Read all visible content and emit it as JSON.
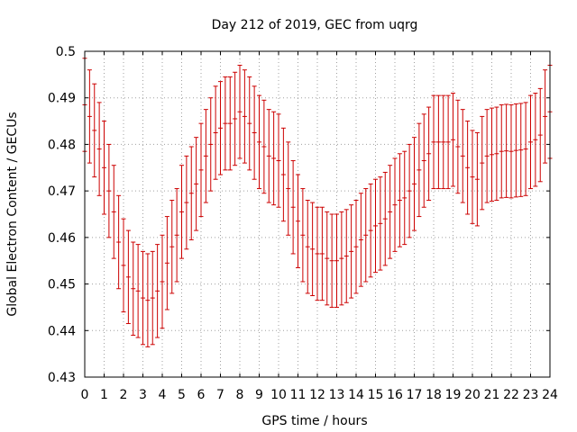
{
  "chart_data": {
    "type": "errorbar",
    "title": "Day 212 of 2019, GEC from uqrg",
    "xlabel": "GPS time / hours",
    "ylabel": "Global Electron Content / GECUs",
    "xlim": [
      0,
      24
    ],
    "ylim": [
      0.43,
      0.5
    ],
    "xticks": [
      "0",
      "1",
      "2",
      "3",
      "4",
      "5",
      "6",
      "7",
      "8",
      "9",
      "10",
      "11",
      "12",
      "13",
      "14",
      "15",
      "16",
      "17",
      "18",
      "19",
      "20",
      "21",
      "22",
      "23",
      "24"
    ],
    "yticks": [
      "0.43",
      "0.44",
      "0.45",
      "0.46",
      "0.47",
      "0.48",
      "0.49",
      "0.5"
    ],
    "grid": true,
    "series": [
      {
        "name": "GEC",
        "color": "#cc0000",
        "error": 0.01,
        "points": [
          [
            0.0,
            0.4885
          ],
          [
            0.25,
            0.486
          ],
          [
            0.5,
            0.483
          ],
          [
            0.75,
            0.479
          ],
          [
            1.0,
            0.475
          ],
          [
            1.25,
            0.47
          ],
          [
            1.5,
            0.4655
          ],
          [
            1.75,
            0.459
          ],
          [
            2.0,
            0.454
          ],
          [
            2.25,
            0.4515
          ],
          [
            2.5,
            0.449
          ],
          [
            2.75,
            0.4485
          ],
          [
            3.0,
            0.447
          ],
          [
            3.25,
            0.4465
          ],
          [
            3.5,
            0.447
          ],
          [
            3.75,
            0.4485
          ],
          [
            4.0,
            0.4505
          ],
          [
            4.25,
            0.4545
          ],
          [
            4.5,
            0.458
          ],
          [
            4.75,
            0.4605
          ],
          [
            5.0,
            0.4655
          ],
          [
            5.25,
            0.4675
          ],
          [
            5.5,
            0.4695
          ],
          [
            5.75,
            0.4715
          ],
          [
            6.0,
            0.4745
          ],
          [
            6.25,
            0.4775
          ],
          [
            6.5,
            0.48
          ],
          [
            6.75,
            0.4825
          ],
          [
            7.0,
            0.4835
          ],
          [
            7.25,
            0.4845
          ],
          [
            7.5,
            0.4845
          ],
          [
            7.75,
            0.4855
          ],
          [
            8.0,
            0.487
          ],
          [
            8.25,
            0.486
          ],
          [
            8.5,
            0.4845
          ],
          [
            8.75,
            0.4825
          ],
          [
            9.0,
            0.4805
          ],
          [
            9.25,
            0.4795
          ],
          [
            9.5,
            0.4775
          ],
          [
            9.75,
            0.477
          ],
          [
            10.0,
            0.4765
          ],
          [
            10.25,
            0.4735
          ],
          [
            10.5,
            0.4705
          ],
          [
            10.75,
            0.4665
          ],
          [
            11.0,
            0.4635
          ],
          [
            11.25,
            0.4605
          ],
          [
            11.5,
            0.458
          ],
          [
            11.75,
            0.4575
          ],
          [
            12.0,
            0.4565
          ],
          [
            12.25,
            0.4565
          ],
          [
            12.5,
            0.4555
          ],
          [
            12.75,
            0.455
          ],
          [
            13.0,
            0.455
          ],
          [
            13.25,
            0.4555
          ],
          [
            13.5,
            0.456
          ],
          [
            13.75,
            0.457
          ],
          [
            14.0,
            0.458
          ],
          [
            14.25,
            0.4595
          ],
          [
            14.5,
            0.4605
          ],
          [
            14.75,
            0.4615
          ],
          [
            15.0,
            0.4625
          ],
          [
            15.25,
            0.463
          ],
          [
            15.5,
            0.464
          ],
          [
            15.75,
            0.4655
          ],
          [
            16.0,
            0.467
          ],
          [
            16.25,
            0.468
          ],
          [
            16.5,
            0.4685
          ],
          [
            16.75,
            0.47
          ],
          [
            17.0,
            0.4715
          ],
          [
            17.25,
            0.4745
          ],
          [
            17.5,
            0.4765
          ],
          [
            17.75,
            0.478
          ],
          [
            18.0,
            0.4805
          ],
          [
            18.25,
            0.4805
          ],
          [
            18.5,
            0.4805
          ],
          [
            18.75,
            0.4805
          ],
          [
            19.0,
            0.481
          ],
          [
            19.25,
            0.4795
          ],
          [
            19.5,
            0.4775
          ],
          [
            19.75,
            0.475
          ],
          [
            20.0,
            0.473
          ],
          [
            20.25,
            0.4725
          ],
          [
            20.5,
            0.476
          ],
          [
            20.75,
            0.4775
          ],
          [
            21.0,
            0.4778
          ],
          [
            21.25,
            0.478
          ],
          [
            21.5,
            0.4785
          ],
          [
            21.75,
            0.4786
          ],
          [
            22.0,
            0.4785
          ],
          [
            22.25,
            0.4787
          ],
          [
            22.5,
            0.4788
          ],
          [
            22.75,
            0.479
          ],
          [
            23.0,
            0.4805
          ],
          [
            23.25,
            0.481
          ],
          [
            23.5,
            0.482
          ],
          [
            23.75,
            0.486
          ],
          [
            24.0,
            0.487
          ]
        ]
      }
    ]
  }
}
